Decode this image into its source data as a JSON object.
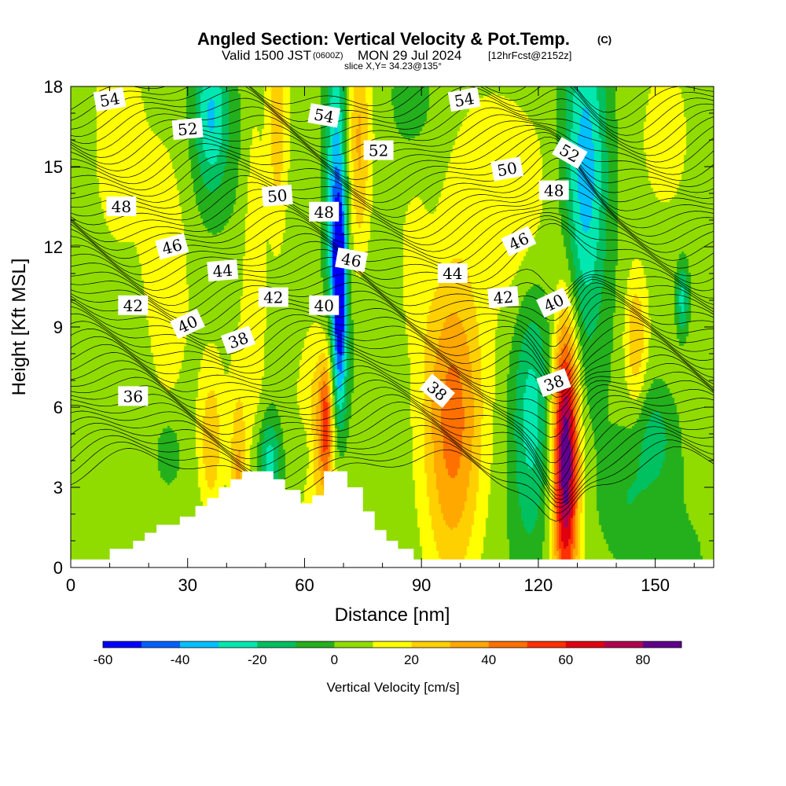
{
  "chart_data": {
    "type": "heatmap",
    "title": "Angled Section: Vertical Velocity & Pot.Temp.",
    "title_unit": "(C)",
    "subtitle_valid": "Valid 1500 JST",
    "subtitle_z": "(0600Z)",
    "subtitle_date": "MON 29 Jul 2024",
    "subtitle_fcst": "[12hrFcst@2152z]",
    "slice_label": "slice X,Y= 34.23@135°",
    "xlabel": "Distance [nm]",
    "ylabel": "Height [Kft MSL]",
    "xlim": [
      0,
      165
    ],
    "ylim": [
      0,
      18
    ],
    "x_ticks": [
      "0",
      "30",
      "60",
      "90",
      "120",
      "150"
    ],
    "y_ticks": [
      "0",
      "3",
      "6",
      "9",
      "12",
      "15",
      "18"
    ],
    "colorbar": {
      "label": "Vertical Velocity [cm/s]",
      "tick_labels": [
        "-60",
        "-40",
        "-20",
        "0",
        "20",
        "40",
        "60",
        "80"
      ],
      "levels": [
        -60,
        -50,
        -40,
        -30,
        -20,
        -10,
        0,
        10,
        20,
        30,
        40,
        50,
        60,
        70,
        80,
        90
      ],
      "colors": [
        "#0000ff",
        "#0060ff",
        "#00c0ff",
        "#00e8b0",
        "#00c060",
        "#24b01c",
        "#90dc00",
        "#ffff00",
        "#ffd000",
        "#ffa800",
        "#ff7000",
        "#ff3000",
        "#e00010",
        "#b00050",
        "#60008c"
      ]
    },
    "contour_labels": [
      {
        "text": "54",
        "x": 10,
        "y": 17.5,
        "angle": -10
      },
      {
        "text": "54",
        "x": 65,
        "y": 16.9,
        "angle": 10
      },
      {
        "text": "54",
        "x": 101,
        "y": 17.5,
        "angle": -10
      },
      {
        "text": "52",
        "x": 30,
        "y": 16.4,
        "angle": -5
      },
      {
        "text": "52",
        "x": 79,
        "y": 15.6,
        "angle": 0
      },
      {
        "text": "52",
        "x": 128,
        "y": 15.5,
        "angle": 30
      },
      {
        "text": "50",
        "x": 53,
        "y": 13.9,
        "angle": -5
      },
      {
        "text": "50",
        "x": 112,
        "y": 14.9,
        "angle": -10
      },
      {
        "text": "48",
        "x": 13,
        "y": 13.5,
        "angle": 0
      },
      {
        "text": "48",
        "x": 65,
        "y": 13.3,
        "angle": 0
      },
      {
        "text": "48",
        "x": 124,
        "y": 14.1,
        "angle": 0
      },
      {
        "text": "46",
        "x": 26,
        "y": 12.0,
        "angle": -15
      },
      {
        "text": "46",
        "x": 72,
        "y": 11.5,
        "angle": 10
      },
      {
        "text": "46",
        "x": 115,
        "y": 12.2,
        "angle": -25
      },
      {
        "text": "44",
        "x": 39,
        "y": 11.1,
        "angle": -5
      },
      {
        "text": "44",
        "x": 98,
        "y": 11.0,
        "angle": 0
      },
      {
        "text": "42",
        "x": 16,
        "y": 9.8,
        "angle": 0
      },
      {
        "text": "42",
        "x": 52,
        "y": 10.1,
        "angle": 0
      },
      {
        "text": "42",
        "x": 111,
        "y": 10.1,
        "angle": -5
      },
      {
        "text": "40",
        "x": 30,
        "y": 9.1,
        "angle": -25
      },
      {
        "text": "40",
        "x": 65,
        "y": 9.8,
        "angle": 0
      },
      {
        "text": "40",
        "x": 124,
        "y": 9.9,
        "angle": -25
      },
      {
        "text": "38",
        "x": 43,
        "y": 8.5,
        "angle": -20
      },
      {
        "text": "38",
        "x": 94,
        "y": 6.6,
        "angle": 40
      },
      {
        "text": "38",
        "x": 124,
        "y": 6.9,
        "angle": -20
      },
      {
        "text": "36",
        "x": 16,
        "y": 6.4,
        "angle": 0
      }
    ],
    "terrain": [
      [
        0,
        0.3
      ],
      [
        10,
        0.3
      ],
      [
        10,
        0.7
      ],
      [
        16,
        0.7
      ],
      [
        16,
        1.0
      ],
      [
        19,
        1.0
      ],
      [
        19,
        1.3
      ],
      [
        22,
        1.3
      ],
      [
        22,
        1.6
      ],
      [
        28,
        1.6
      ],
      [
        28,
        1.9
      ],
      [
        32,
        1.9
      ],
      [
        32,
        2.3
      ],
      [
        35,
        2.3
      ],
      [
        35,
        2.6
      ],
      [
        38,
        2.6
      ],
      [
        38,
        3.0
      ],
      [
        41,
        3.0
      ],
      [
        41,
        3.3
      ],
      [
        44,
        3.3
      ],
      [
        44,
        3.6
      ],
      [
        52,
        3.6
      ],
      [
        52,
        3.3
      ],
      [
        55,
        3.3
      ],
      [
        55,
        2.9
      ],
      [
        59,
        2.9
      ],
      [
        59,
        2.4
      ],
      [
        62,
        2.4
      ],
      [
        62,
        2.7
      ],
      [
        65,
        2.7
      ],
      [
        65,
        3.6
      ],
      [
        71,
        3.6
      ],
      [
        71,
        3.0
      ],
      [
        75,
        3.0
      ],
      [
        75,
        2.1
      ],
      [
        78,
        2.1
      ],
      [
        78,
        1.4
      ],
      [
        81,
        1.4
      ],
      [
        81,
        1.0
      ],
      [
        84,
        1.0
      ],
      [
        84,
        0.7
      ],
      [
        88,
        0.7
      ],
      [
        88,
        0.3
      ],
      [
        165,
        0.3
      ]
    ],
    "updrafts": [
      {
        "x": 12,
        "z": 17,
        "sx": 4,
        "sz": 4,
        "w": 12
      },
      {
        "x": 24,
        "z": 10.5,
        "sx": 4.5,
        "sz": 3.5,
        "w": 16
      },
      {
        "x": 36,
        "z": 4.5,
        "sx": 2.2,
        "sz": 2,
        "w": 25
      },
      {
        "x": 43,
        "z": 3,
        "sx": 1.6,
        "sz": 2.5,
        "w": 30
      },
      {
        "x": 53,
        "z": 16.5,
        "sx": 2,
        "sz": 3,
        "w": 25
      },
      {
        "x": 47,
        "z": 12,
        "sx": 2,
        "sz": 5,
        "w": 15
      },
      {
        "x": 64,
        "z": 5.3,
        "sx": 4,
        "sz": 2.8,
        "w": 26
      },
      {
        "x": 65.5,
        "z": 5.5,
        "sx": 1.2,
        "sz": 1.6,
        "w": 35
      },
      {
        "x": 74,
        "z": 16,
        "sx": 2,
        "sz": 3.5,
        "w": 25
      },
      {
        "x": 88,
        "z": 11.5,
        "sx": 2.5,
        "sz": 2,
        "w": 12
      },
      {
        "x": 98,
        "z": 4.8,
        "sx": 5.5,
        "sz": 4.5,
        "w": 40
      },
      {
        "x": 106,
        "z": 15,
        "sx": 8,
        "sz": 2.5,
        "w": 15
      },
      {
        "x": 116,
        "z": 12,
        "sx": 5,
        "sz": 2.5,
        "w": 12
      },
      {
        "x": 127,
        "z": 4.3,
        "sx": 2.3,
        "sz": 3.6,
        "w": 88
      },
      {
        "x": 145,
        "z": 8.5,
        "sx": 2,
        "sz": 1.8,
        "w": 25
      },
      {
        "x": 153,
        "z": 16,
        "sx": 6,
        "sz": 2.5,
        "w": 15
      }
    ],
    "downdrafts": [
      {
        "x": 69,
        "z": 10.6,
        "sx": 1.2,
        "sz": 2.3,
        "w": -62
      },
      {
        "x": 68,
        "z": 14.5,
        "sx": 2,
        "sz": 4,
        "w": -40
      },
      {
        "x": 69,
        "z": 6.5,
        "sx": 1.5,
        "sz": 2,
        "w": -22
      },
      {
        "x": 36,
        "z": 17,
        "sx": 3,
        "sz": 2,
        "w": -32
      },
      {
        "x": 51,
        "z": 4,
        "sx": 2,
        "sz": 1.2,
        "w": -28
      },
      {
        "x": 60,
        "z": 4.3,
        "sx": 2,
        "sz": 1,
        "w": -12
      },
      {
        "x": 132,
        "z": 15,
        "sx": 4,
        "sz": 4,
        "w": -42
      },
      {
        "x": 118,
        "z": 5.5,
        "sx": 3.5,
        "sz": 4,
        "w": -26
      },
      {
        "x": 150,
        "z": 5,
        "sx": 4,
        "sz": 1.5,
        "w": -18
      },
      {
        "x": 87,
        "z": 17.5,
        "sx": 3,
        "sz": 1,
        "w": -12
      },
      {
        "x": 157,
        "z": 10,
        "sx": 1.2,
        "sz": 1,
        "w": -30
      },
      {
        "x": 25,
        "z": 4.3,
        "sx": 2,
        "sz": 0.8,
        "w": -15
      },
      {
        "x": 142,
        "z": 2.5,
        "sx": 5,
        "sz": 1.5,
        "w": -12
      }
    ]
  }
}
